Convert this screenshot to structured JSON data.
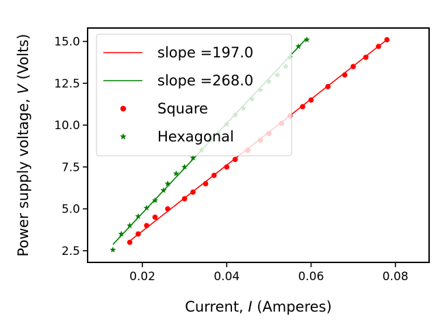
{
  "chart_data": {
    "type": "scatter",
    "title": "",
    "xlabel_parts": [
      "Current, ",
      "I",
      " (Amperes)"
    ],
    "ylabel_parts": [
      "Power supply voltage, ",
      "V",
      " (Volts)"
    ],
    "xlim": [
      0.007,
      0.088
    ],
    "ylim": [
      1.8,
      15.8
    ],
    "xticks": [
      0.02,
      0.04,
      0.06,
      0.08
    ],
    "xtick_labels": [
      "0.02",
      "0.04",
      "0.06",
      "0.08"
    ],
    "yticks": [
      2.5,
      5.0,
      7.5,
      10.0,
      12.5,
      15.0
    ],
    "ytick_labels": [
      "2.5",
      "5.0",
      "7.5",
      "10.0",
      "12.5",
      "15.0"
    ],
    "grid": false,
    "legend_position": "top-left",
    "fit_lines": [
      {
        "name": "slope =197.0",
        "color": "#ff0000",
        "slope": 197.0,
        "x": [
          0.017,
          0.078
        ],
        "y": [
          3.08,
          15.1
        ]
      },
      {
        "name": "slope =268.0",
        "color": "#008000",
        "slope": 268.0,
        "x": [
          0.013,
          0.059
        ],
        "y": [
          2.87,
          15.2
        ]
      }
    ],
    "series": [
      {
        "name": "Square",
        "color": "#ff0000",
        "marker": "circle",
        "x": [
          0.017,
          0.019,
          0.021,
          0.023,
          0.026,
          0.03,
          0.032,
          0.035,
          0.037,
          0.04,
          0.042,
          0.045,
          0.048,
          0.05,
          0.053,
          0.055,
          0.058,
          0.06,
          0.064,
          0.068,
          0.07,
          0.073,
          0.076,
          0.078
        ],
        "y": [
          3.0,
          3.5,
          4.0,
          4.5,
          5.0,
          5.6,
          6.0,
          6.5,
          7.0,
          7.5,
          7.95,
          8.5,
          9.1,
          9.5,
          10.1,
          10.55,
          11.1,
          11.5,
          12.3,
          13.0,
          13.5,
          14.05,
          14.7,
          15.1
        ]
      },
      {
        "name": "Hexagonal",
        "color": "#008000",
        "marker": "star",
        "x": [
          0.013,
          0.015,
          0.017,
          0.019,
          0.021,
          0.023,
          0.025,
          0.026,
          0.028,
          0.03,
          0.032,
          0.034,
          0.036,
          0.038,
          0.04,
          0.042,
          0.044,
          0.046,
          0.048,
          0.05,
          0.052,
          0.054,
          0.055,
          0.057,
          0.059
        ],
        "y": [
          2.55,
          3.5,
          4.0,
          4.55,
          5.05,
          5.5,
          6.1,
          6.5,
          7.1,
          7.5,
          8.05,
          8.5,
          9.1,
          9.5,
          10.05,
          10.6,
          11.0,
          11.55,
          12.1,
          12.6,
          13.0,
          13.5,
          14.05,
          14.7,
          15.1
        ]
      }
    ]
  }
}
